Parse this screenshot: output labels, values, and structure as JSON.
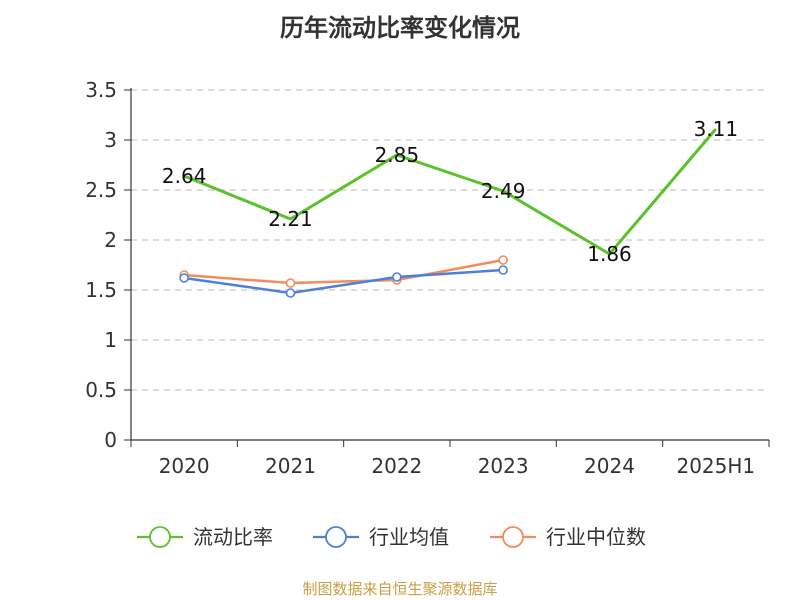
{
  "chart_data": {
    "type": "line",
    "title": "历年流动比率变化情况",
    "categories": [
      "2020",
      "2021",
      "2022",
      "2023",
      "2024",
      "2025H1"
    ],
    "ylim": [
      0,
      3.5
    ],
    "yticks": [
      "0",
      "0.5",
      "1",
      "1.5",
      "2",
      "2.5",
      "3",
      "3.5"
    ],
    "grid": true,
    "legend_position": "bottom",
    "series": [
      {
        "name": "流动比率",
        "color": "#5cc12a",
        "values": [
          2.64,
          2.21,
          2.85,
          2.49,
          1.86,
          3.11
        ],
        "labels": [
          "2.64",
          "2.21",
          "2.85",
          "2.49",
          "1.86",
          "3.11"
        ]
      },
      {
        "name": "行业均值",
        "color": "#4f7fdc",
        "values": [
          1.62,
          1.47,
          1.63,
          1.7,
          null,
          null
        ]
      },
      {
        "name": "行业中位数",
        "color": "#f28c5c",
        "values": [
          1.65,
          1.57,
          1.6,
          1.8,
          null,
          null
        ]
      }
    ]
  },
  "source_note": "制图数据来自恒生聚源数据库"
}
